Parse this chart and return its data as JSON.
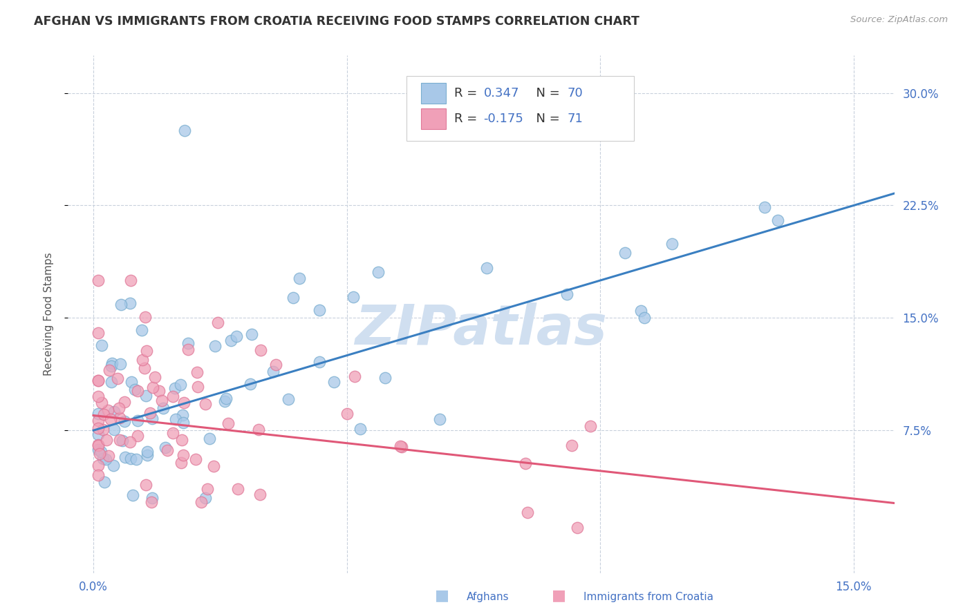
{
  "title": "AFGHAN VS IMMIGRANTS FROM CROATIA RECEIVING FOOD STAMPS CORRELATION CHART",
  "source": "Source: ZipAtlas.com",
  "ylabel": "Receiving Food Stamps",
  "ytick_vals": [
    0.075,
    0.15,
    0.225,
    0.3
  ],
  "ytick_labels": [
    "7.5%",
    "15.0%",
    "22.5%",
    "30.0%"
  ],
  "xtick_vals": [
    0.0,
    0.15
  ],
  "xtick_labels": [
    "0.0%",
    "15.0%"
  ],
  "xlim": [
    -0.005,
    0.158
  ],
  "ylim": [
    -0.02,
    0.325
  ],
  "blue_R": 0.347,
  "blue_N": 70,
  "pink_R": -0.175,
  "pink_N": 71,
  "blue_color": "#a8c8e8",
  "pink_color": "#f0a0b8",
  "blue_edge_color": "#7aaed0",
  "pink_edge_color": "#e07898",
  "blue_line_color": "#3a7fc1",
  "pink_line_color": "#e05878",
  "label_blue": "Afghans",
  "label_pink": "Immigrants from Croatia",
  "watermark": "ZIPatlas",
  "watermark_color": "#d0dff0",
  "title_color": "#333333",
  "tick_label_color": "#4472c4",
  "background_color": "#ffffff",
  "grid_color": "#c8d0dc",
  "blue_line_intercept": 0.075,
  "blue_line_slope": 1.0,
  "pink_line_intercept": 0.085,
  "pink_line_slope": -0.37,
  "legend_R_color": "#333333",
  "legend_N_color": "#4472c4",
  "legend_val_color": "#4472c4"
}
